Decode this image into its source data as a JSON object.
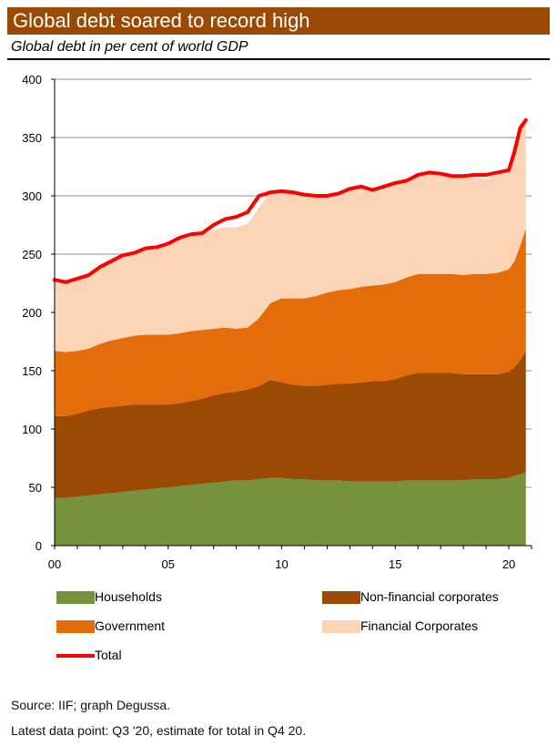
{
  "header": {
    "title": "Global debt soared to record high",
    "subtitle": "Global debt in per cent of world GDP"
  },
  "footer": {
    "source": "Source: IIF; graph Degussa.",
    "note": "Latest data point: Q3 '20, estimate for total in Q4 20."
  },
  "chart_data": {
    "type": "area",
    "title": "Global debt soared to record high",
    "subtitle": "Global debt in per cent of world GDP",
    "xlabel": "",
    "ylabel": "",
    "xlim": [
      0,
      21
    ],
    "ylim": [
      0,
      400
    ],
    "x_ticks": [
      0,
      5,
      10,
      15,
      20
    ],
    "x_tick_labels": [
      "00",
      "05",
      "10",
      "15",
      "20"
    ],
    "y_ticks": [
      0,
      50,
      100,
      150,
      200,
      250,
      300,
      350,
      400
    ],
    "grid": "horizontal",
    "stacked": true,
    "legend_position": "bottom",
    "colors": {
      "households": "#76923c",
      "nonfinancial": "#9b4a05",
      "government": "#e46c0a",
      "financial": "#fbd5b5",
      "total": "#ff0000"
    },
    "x": [
      0,
      0.5,
      1,
      1.5,
      2,
      2.5,
      3,
      3.5,
      4,
      4.5,
      5,
      5.5,
      6,
      6.5,
      7,
      7.5,
      8,
      8.5,
      9,
      9.5,
      10,
      10.5,
      11,
      11.5,
      12,
      12.5,
      13,
      13.5,
      14,
      14.5,
      15,
      15.5,
      16,
      16.5,
      17,
      17.5,
      18,
      18.5,
      19,
      19.5,
      20,
      20.25,
      20.5,
      20.75
    ],
    "series": [
      {
        "name": "Households",
        "values": [
          41,
          41,
          42,
          43,
          44,
          45,
          46,
          47,
          48,
          49,
          50,
          51,
          52,
          53,
          54,
          55,
          56,
          56,
          57,
          58,
          58,
          57,
          57,
          56,
          56,
          56,
          55,
          55,
          55,
          55,
          55,
          56,
          56,
          56,
          56,
          56,
          56,
          57,
          57,
          57,
          58,
          60,
          61,
          63
        ]
      },
      {
        "name": "Non-financial corporates",
        "values": [
          70,
          70,
          71,
          73,
          74,
          74,
          74,
          74,
          73,
          72,
          71,
          71,
          72,
          73,
          75,
          76,
          76,
          78,
          80,
          84,
          82,
          81,
          80,
          81,
          82,
          83,
          84,
          85,
          86,
          86,
          88,
          90,
          92,
          92,
          92,
          92,
          91,
          90,
          90,
          90,
          91,
          93,
          98,
          104
        ]
      },
      {
        "name": "Government",
        "values": [
          56,
          55,
          54,
          53,
          55,
          57,
          58,
          59,
          60,
          60,
          60,
          60,
          60,
          59,
          57,
          56,
          54,
          53,
          58,
          66,
          72,
          74,
          75,
          77,
          79,
          80,
          81,
          82,
          82,
          83,
          83,
          84,
          85,
          85,
          85,
          85,
          85,
          86,
          86,
          87,
          88,
          91,
          98,
          105
        ]
      },
      {
        "name": "Financial Corporates",
        "values": [
          61,
          60,
          62,
          63,
          66,
          68,
          71,
          71,
          74,
          74,
          76,
          80,
          81,
          82,
          85,
          86,
          87,
          89,
          95,
          95,
          92,
          91,
          89,
          86,
          83,
          83,
          86,
          86,
          82,
          84,
          85,
          81,
          83,
          86,
          87,
          83,
          83,
          83,
          82,
          84,
          84,
          90,
          105,
          93
        ]
      },
      {
        "name": "Total",
        "values": [
          228,
          226,
          229,
          232,
          239,
          244,
          249,
          251,
          255,
          256,
          259,
          264,
          267,
          268,
          275,
          280,
          282,
          286,
          300,
          303,
          304,
          303,
          301,
          300,
          300,
          302,
          306,
          308,
          305,
          308,
          311,
          313,
          318,
          320,
          319,
          317,
          317,
          318,
          318,
          320,
          322,
          338,
          358,
          365
        ]
      }
    ]
  }
}
